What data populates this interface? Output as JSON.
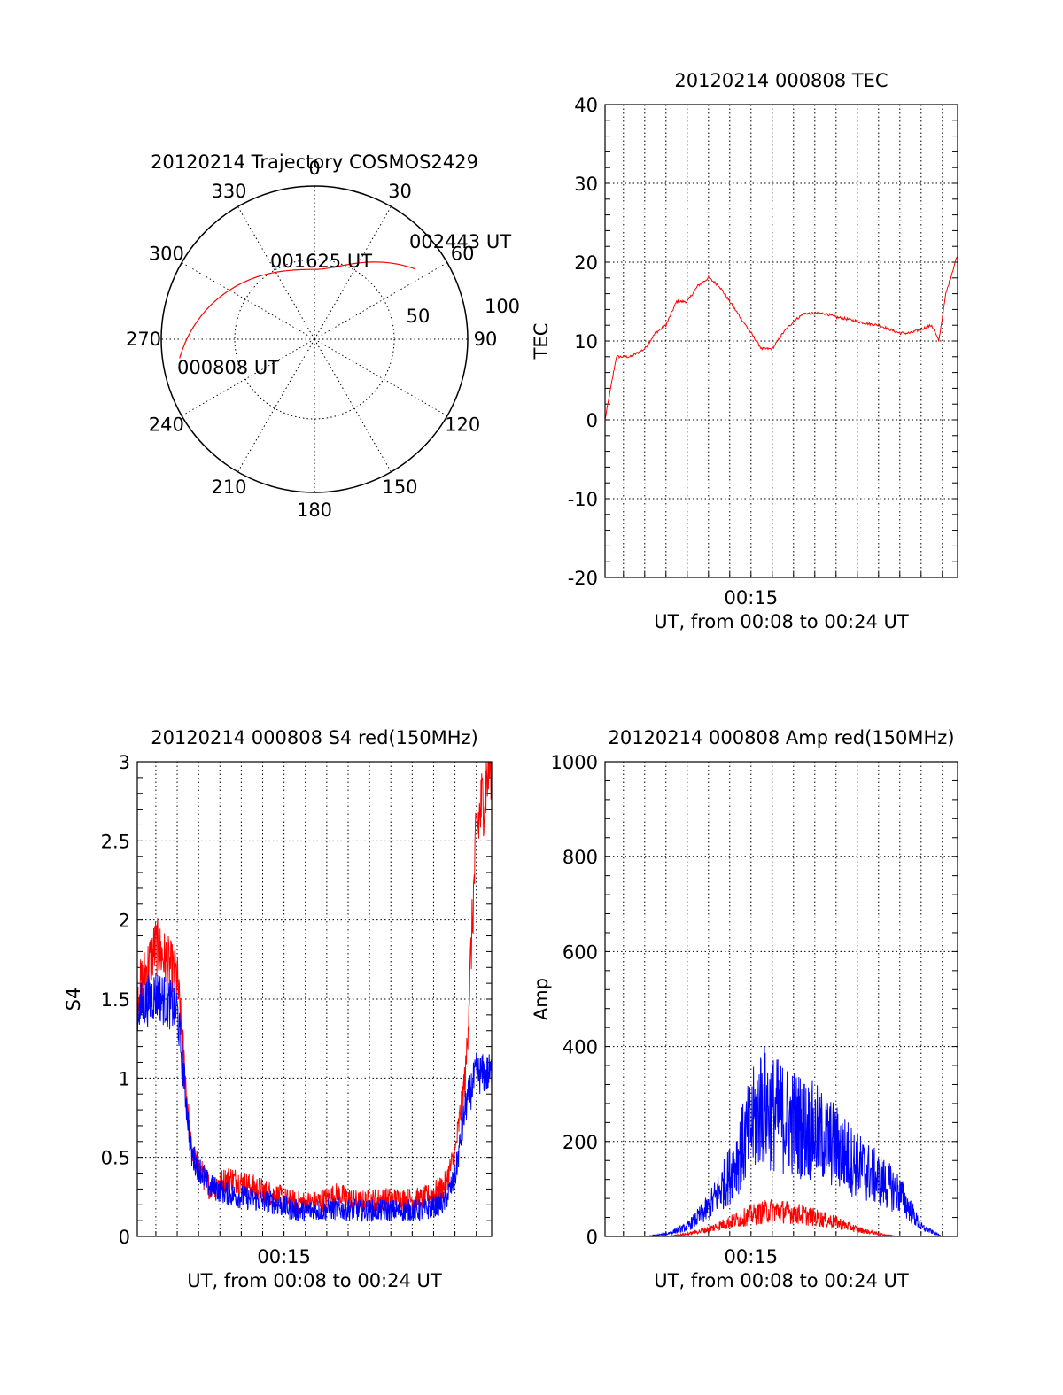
{
  "colors": {
    "red": "#ff0000",
    "blue": "#0000ff",
    "axis": "#000000",
    "grid": "#000000",
    "background": "#ffffff"
  },
  "chart_data": [
    {
      "id": "trajectory",
      "type": "polar",
      "title": "20120214 Trajectory COSMOS2429",
      "angle_ticks": [
        "0",
        "30",
        "60",
        "90",
        "120",
        "150",
        "180",
        "210",
        "240",
        "270",
        "300",
        "330"
      ],
      "radial_ticks": [
        "50",
        "100"
      ],
      "elevation_circles": [
        0,
        50
      ],
      "points": [
        {
          "label": "000808 UT",
          "azimuth": 262,
          "elevation": 10
        },
        {
          "label": "001625 UT",
          "azimuth": 0,
          "elevation": 49
        },
        {
          "label": "002443 UT",
          "azimuth": 55,
          "elevation": 18
        }
      ],
      "track_color": "#ff0000"
    },
    {
      "id": "tec",
      "type": "line",
      "title": "20120214 000808 TEC",
      "xlabel": "UT, from 00:08 to 00:24 UT",
      "ylabel": "TEC",
      "xtick_labels": [
        "00:15"
      ],
      "xlim": [
        "00:08:08",
        "00:24:43"
      ],
      "ylim": [
        -20,
        40
      ],
      "yticks": [
        -20,
        -10,
        0,
        10,
        20,
        30,
        40
      ],
      "grid": true,
      "series": [
        {
          "color": "#ff0000",
          "x": [
            "00:08:08",
            "00:08:40",
            "00:09:20",
            "00:10:00",
            "00:10:30",
            "00:11:00",
            "00:11:30",
            "00:12:00",
            "00:12:30",
            "00:13:00",
            "00:13:30",
            "00:14:00",
            "00:14:30",
            "00:15:00",
            "00:15:30",
            "00:16:00",
            "00:16:30",
            "00:17:00",
            "00:17:30",
            "00:18:00",
            "00:18:30",
            "00:19:00",
            "00:19:30",
            "00:20:00",
            "00:20:30",
            "00:21:00",
            "00:21:30",
            "00:22:00",
            "00:22:30",
            "00:23:00",
            "00:23:30",
            "00:23:50",
            "00:24:10",
            "00:24:43"
          ],
          "values": [
            0,
            8,
            8,
            9,
            11,
            12,
            15,
            15,
            17,
            18,
            17,
            15,
            13,
            11,
            9,
            9,
            11,
            12.5,
            13.5,
            13.5,
            13.5,
            13,
            12.8,
            12.5,
            12.2,
            12,
            11.5,
            11,
            11,
            11.5,
            12,
            10,
            16,
            21
          ]
        }
      ]
    },
    {
      "id": "s4",
      "type": "line",
      "title": "20120214 000808 S4 red(150MHz)",
      "xlabel": "UT, from 00:08 to 00:24 UT",
      "ylabel": "S4",
      "xtick_labels": [
        "00:15"
      ],
      "xlim": [
        "00:08:08",
        "00:24:43"
      ],
      "ylim": [
        0,
        3
      ],
      "yticks": [
        "0",
        "0.5",
        "1",
        "1.5",
        "2",
        "2.5",
        "3"
      ],
      "grid": true,
      "series": [
        {
          "color": "#ff0000",
          "x": [
            "00:08:08",
            "00:09:00",
            "00:10:00",
            "00:10:40",
            "00:11:30",
            "00:12:30",
            "00:13:30",
            "00:14:30",
            "00:15:30",
            "00:16:30",
            "00:17:30",
            "00:18:30",
            "00:19:30",
            "00:20:30",
            "00:21:30",
            "00:22:30",
            "00:23:00",
            "00:23:30",
            "00:24:00",
            "00:24:43"
          ],
          "values": [
            1.5,
            1.8,
            1.6,
            0.5,
            0.3,
            0.35,
            0.3,
            0.25,
            0.2,
            0.2,
            0.25,
            0.2,
            0.22,
            0.22,
            0.22,
            0.3,
            0.5,
            1.0,
            2.5,
            3.0
          ]
        },
        {
          "color": "#0000ff",
          "x": [
            "00:08:08",
            "00:09:00",
            "00:10:00",
            "00:10:40",
            "00:11:30",
            "00:12:30",
            "00:13:30",
            "00:14:30",
            "00:15:30",
            "00:16:30",
            "00:17:30",
            "00:18:30",
            "00:19:30",
            "00:20:30",
            "00:21:30",
            "00:22:30",
            "00:23:00",
            "00:23:30",
            "00:24:00",
            "00:24:43"
          ],
          "values": [
            1.4,
            1.5,
            1.4,
            0.5,
            0.3,
            0.25,
            0.22,
            0.2,
            0.15,
            0.15,
            0.16,
            0.15,
            0.15,
            0.15,
            0.15,
            0.2,
            0.35,
            0.8,
            1.0,
            1.0
          ]
        }
      ]
    },
    {
      "id": "amp",
      "type": "line",
      "title": "20120214 000808 Amp red(150MHz)",
      "xlabel": "UT, from 00:08 to 00:24 UT",
      "ylabel": "Amp",
      "xtick_labels": [
        "00:15"
      ],
      "xlim": [
        "00:08:08",
        "00:24:43"
      ],
      "ylim": [
        0,
        1000
      ],
      "yticks": [
        0,
        200,
        400,
        600,
        800,
        1000
      ],
      "grid": true,
      "series": [
        {
          "color": "#0000ff",
          "x": [
            "00:08:08",
            "00:10:00",
            "00:11:00",
            "00:12:00",
            "00:13:00",
            "00:14:00",
            "00:15:00",
            "00:15:30",
            "00:16:00",
            "00:17:00",
            "00:18:00",
            "00:19:00",
            "00:20:00",
            "00:21:00",
            "00:22:00",
            "00:23:00",
            "00:24:00",
            "00:24:43"
          ],
          "values": [
            0,
            0,
            5,
            20,
            60,
            130,
            230,
            280,
            260,
            240,
            220,
            190,
            150,
            120,
            90,
            20,
            0,
            0
          ]
        },
        {
          "color": "#ff0000",
          "x": [
            "00:08:08",
            "00:11:00",
            "00:12:00",
            "00:13:00",
            "00:14:00",
            "00:15:00",
            "00:16:00",
            "00:17:00",
            "00:18:00",
            "00:19:00",
            "00:20:00",
            "00:21:00",
            "00:22:00",
            "00:23:00",
            "00:24:43"
          ],
          "values": [
            0,
            0,
            5,
            15,
            30,
            45,
            55,
            50,
            40,
            30,
            15,
            5,
            0,
            0,
            0
          ]
        }
      ]
    }
  ]
}
